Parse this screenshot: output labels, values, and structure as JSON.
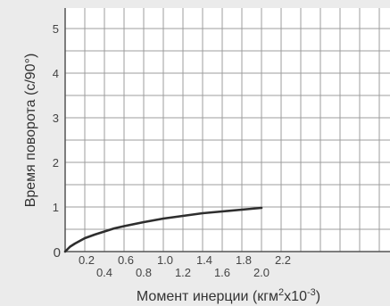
{
  "chart_data": {
    "type": "line",
    "ylabel": "Время поворота (с/90°)",
    "xlabel": {
      "prefix": "Момент инерции (кгм",
      "sup1": "2",
      "mid": "x10",
      "sup2": "-3",
      "suffix": ")"
    },
    "xlim": [
      0,
      2.8
    ],
    "ylim": [
      0,
      5.5
    ],
    "grid": true,
    "x_ticks_upper": [
      "0.2",
      "0.6",
      "1.0",
      "1.4",
      "1.8",
      "2.2"
    ],
    "x_ticks_lower": [
      "0.4",
      "0.8",
      "1.2",
      "1.6",
      "2.0"
    ],
    "y_ticks": [
      "0",
      "1",
      "2",
      "3",
      "4",
      "5"
    ],
    "series": [
      {
        "x": [
          0,
          0.05,
          0.1,
          0.2,
          0.3,
          0.4,
          0.5,
          0.6,
          0.8,
          1.0,
          1.2,
          1.4,
          1.6,
          1.8,
          2.0
        ],
        "y": [
          0,
          0.11,
          0.18,
          0.3,
          0.38,
          0.45,
          0.52,
          0.57,
          0.66,
          0.74,
          0.8,
          0.86,
          0.9,
          0.94,
          0.98
        ]
      }
    ]
  }
}
